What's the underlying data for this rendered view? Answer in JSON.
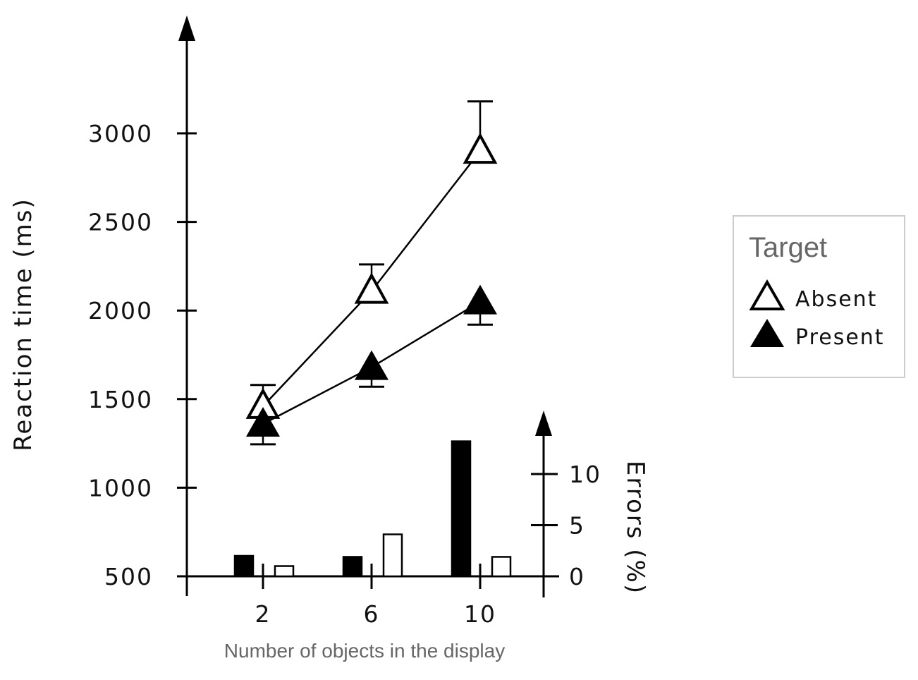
{
  "chart_data": {
    "type": "line",
    "xlabel": "Number of objects in the display",
    "ylabel": "Reaction time (ms)",
    "y2label": "Errors (%)",
    "x": [
      2,
      6,
      10
    ],
    "x_ticks": [
      "2",
      "6",
      "10"
    ],
    "ylim": [
      500,
      3300
    ],
    "y_ticks": [
      500,
      1000,
      1500,
      2000,
      2500,
      3000
    ],
    "y2lim": [
      0,
      16
    ],
    "y2_ticks": [
      0,
      5,
      10
    ],
    "legend": {
      "title": "Target",
      "placement": "right"
    },
    "series": [
      {
        "name": "Absent",
        "marker": "open-triangle",
        "values": [
          1460,
          2110,
          2900
        ],
        "error_upper": [
          1580,
          2260,
          3180
        ]
      },
      {
        "name": "Present",
        "marker": "filled-triangle",
        "values": [
          1360,
          1680,
          2050
        ],
        "error_lower": [
          1245,
          1570,
          1920
        ]
      }
    ],
    "error_bars": {
      "type": "bar",
      "axis": "right",
      "series": [
        {
          "name": "Present",
          "fill": "#000000",
          "values": [
            2.0,
            1.9,
            13.2
          ]
        },
        {
          "name": "Absent",
          "fill": "#ffffff",
          "values": [
            1.0,
            4.1,
            1.9
          ]
        }
      ]
    }
  }
}
